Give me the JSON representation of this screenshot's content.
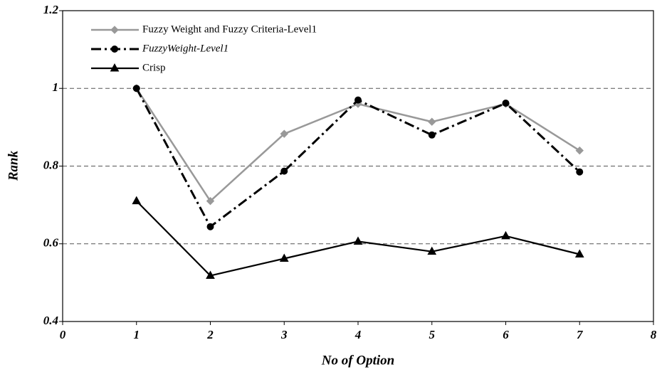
{
  "chart_data": {
    "type": "line",
    "x_label": "No of Option",
    "y_label": "Rank",
    "x": [
      1,
      2,
      3,
      4,
      5,
      6,
      7
    ],
    "series": [
      {
        "name": "Fuzzy Weight and Fuzzy Criteria-Level1",
        "color": "#999999",
        "marker": "diamond",
        "line_style": "solid",
        "values": [
          1.0,
          0.71,
          0.883,
          0.96,
          0.914,
          0.96,
          0.84
        ]
      },
      {
        "name": "FuzzyWeight-Level1",
        "color": "#000000",
        "marker": "circle",
        "line_style": "dashdot",
        "values": [
          1.0,
          0.644,
          0.787,
          0.97,
          0.88,
          0.962,
          0.785
        ]
      },
      {
        "name": "Crisp",
        "color": "#000000",
        "marker": "triangle",
        "line_style": "solid",
        "values": [
          0.71,
          0.518,
          0.562,
          0.606,
          0.58,
          0.62,
          0.573
        ]
      }
    ],
    "xlim": [
      0,
      8
    ],
    "xticks": [
      0,
      1,
      2,
      3,
      4,
      5,
      6,
      7,
      8
    ],
    "ylim": [
      0.4,
      1.2
    ],
    "yticks": [
      0.4,
      0.6,
      0.8,
      1,
      1.2
    ],
    "grid": true,
    "legend": "upper left"
  }
}
